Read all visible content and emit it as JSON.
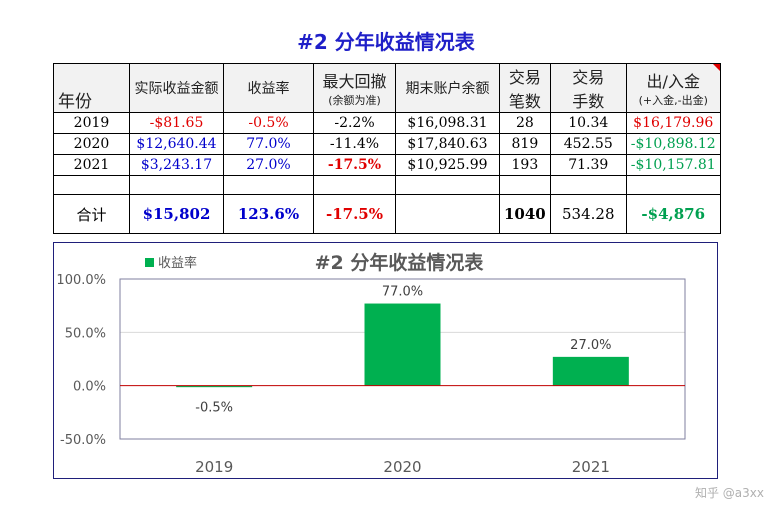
{
  "title": "#2 分年收益情况表",
  "table": {
    "headers": {
      "year": "年份",
      "profit": "实际收益金额",
      "rate": "收益率",
      "drawdown_top": "最大回撤",
      "drawdown_bottom": "(余额为准)",
      "balance": "期末账户余额",
      "trades_top": "交易",
      "trades_bottom": "笔数",
      "lots_top": "交易",
      "lots_bottom": "手数",
      "flow_top": "出/入金",
      "flow_bottom": "(+入金,-出金)"
    },
    "rows": [
      {
        "year": "2019",
        "profit": "-$81.65",
        "rate": "-0.5%",
        "drawdown": "-2.2%",
        "balance": "$16,098.31",
        "trades": "28",
        "lots": "10.34",
        "flow": "$16,179.96"
      },
      {
        "year": "2020",
        "profit": "$12,640.44",
        "rate": "77.0%",
        "drawdown": "-11.4%",
        "balance": "$17,840.63",
        "trades": "819",
        "lots": "452.55",
        "flow": "-$10,898.12"
      },
      {
        "year": "2021",
        "profit": "$3,243.17",
        "rate": "27.0%",
        "drawdown": "-17.5%",
        "balance": "$10,925.99",
        "trades": "193",
        "lots": "71.39",
        "flow": "-$10,157.81"
      }
    ],
    "total": {
      "label": "合计",
      "profit": "$15,802",
      "rate": "123.6%",
      "drawdown": "-17.5%",
      "balance": "",
      "trades": "1040",
      "lots": "534.28",
      "flow": "-$4,876"
    }
  },
  "chart_data": {
    "type": "bar",
    "title": "#2 分年收益情况表",
    "categories": [
      "2019",
      "2020",
      "2021"
    ],
    "series": [
      {
        "name": "收益率",
        "values": [
          -0.5,
          77.0,
          27.0
        ]
      }
    ],
    "data_labels": [
      "-0.5%",
      "77.0%",
      "27.0%"
    ],
    "ylim": [
      -50,
      100
    ],
    "yticks": [
      -50,
      0,
      50,
      100
    ],
    "ytick_labels": [
      "-50.0%",
      "0.0%",
      "50.0%",
      "100.0%"
    ],
    "grid": true,
    "legend": "top-left",
    "colors": {
      "bar": "#00b050",
      "zero_line": "#c00000",
      "grid": "#d9d9d9",
      "plot_border": "#7f7f9f"
    }
  },
  "watermark": "知乎 @a3xx"
}
